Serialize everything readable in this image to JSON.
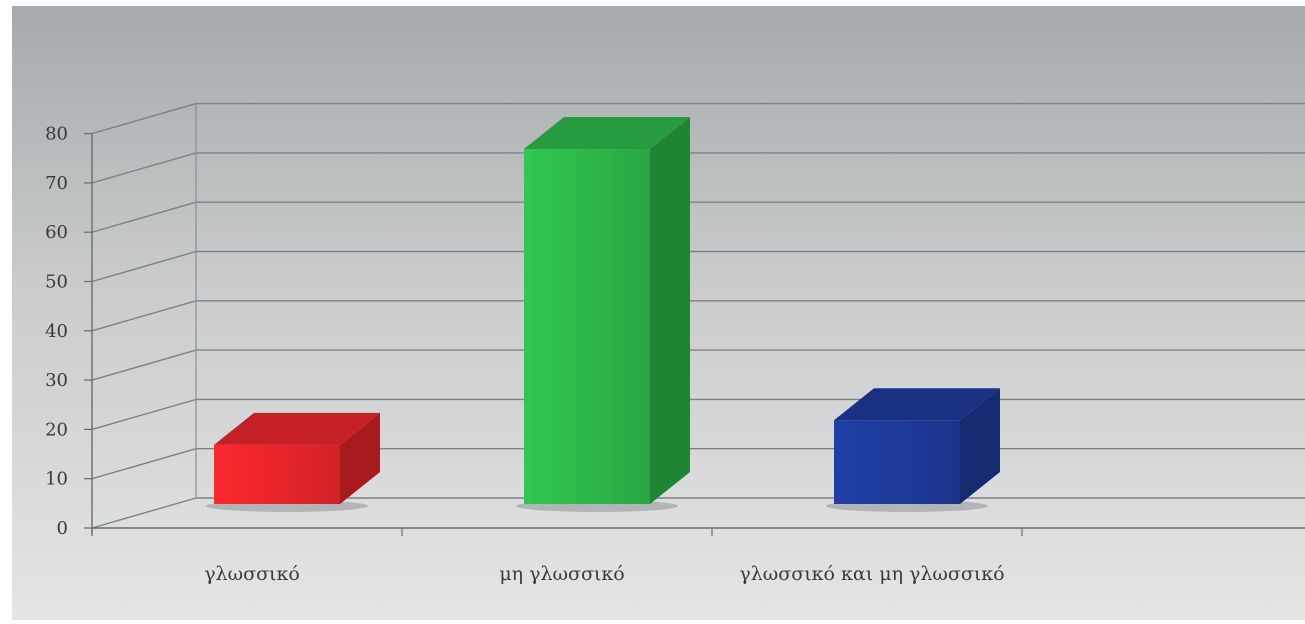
{
  "chart_data": {
    "type": "bar",
    "three_d": true,
    "title": "",
    "xlabel": "",
    "ylabel": "",
    "ylim": [
      0,
      80
    ],
    "yticks": [
      0,
      10,
      20,
      30,
      40,
      50,
      60,
      70,
      80
    ],
    "grid": true,
    "legend": "none",
    "categories": [
      "γλωσσικό",
      "μη γλωσσικό",
      "γλωσσικό και μη γλωσσικό"
    ],
    "values": [
      12,
      72,
      17
    ],
    "colors": [
      "#e8262b",
      "#2db84a",
      "#1e3a9a"
    ]
  }
}
